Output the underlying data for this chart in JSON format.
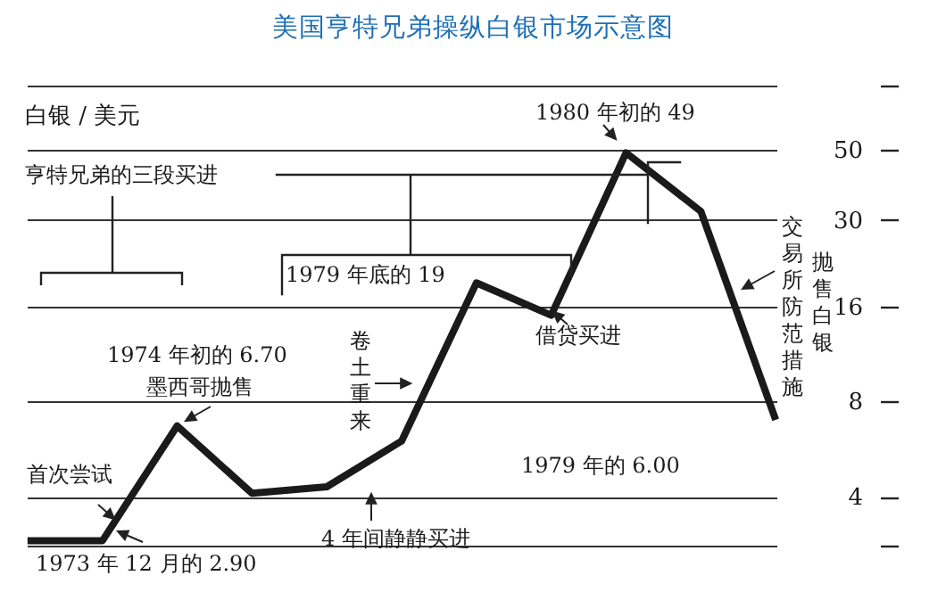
{
  "chart_data": {
    "type": "line",
    "title": "美国亨特兄弟操纵白银市场示意图",
    "ylabel": "白银 / 美元",
    "categories": [
      null,
      null,
      null,
      null,
      null,
      null,
      null,
      null,
      null,
      null,
      null
    ],
    "series": [
      {
        "color": "#1a1a1a",
        "values": [
          2.9,
          2.9,
          6.7,
          4.1,
          4.3,
          6.0,
          19,
          15,
          49,
          32,
          7
        ]
      }
    ],
    "log": true,
    "ylim": [
      2.8,
      80
    ],
    "yticks": [
      {
        "value": 2.8,
        "label": null
      },
      4,
      8,
      16,
      30,
      50,
      {
        "value": 80,
        "label": null
      }
    ],
    "grid": "y",
    "tick_labels": "y",
    "marker": "none",
    "line_style": "solid",
    "annotations": [
      "亨特兄弟的三段买进",
      "1979 年底的 19",
      "1980 年初的 49",
      "1974 年初的 6.70",
      "墨西哥抛售",
      "首次尝试",
      "1973 年 12 月的 2.90",
      "4 年间静静买进",
      "1979 年的 6.00",
      "卷土重来",
      "借贷买进",
      "交易所防范措施",
      "抛售白银"
    ]
  }
}
